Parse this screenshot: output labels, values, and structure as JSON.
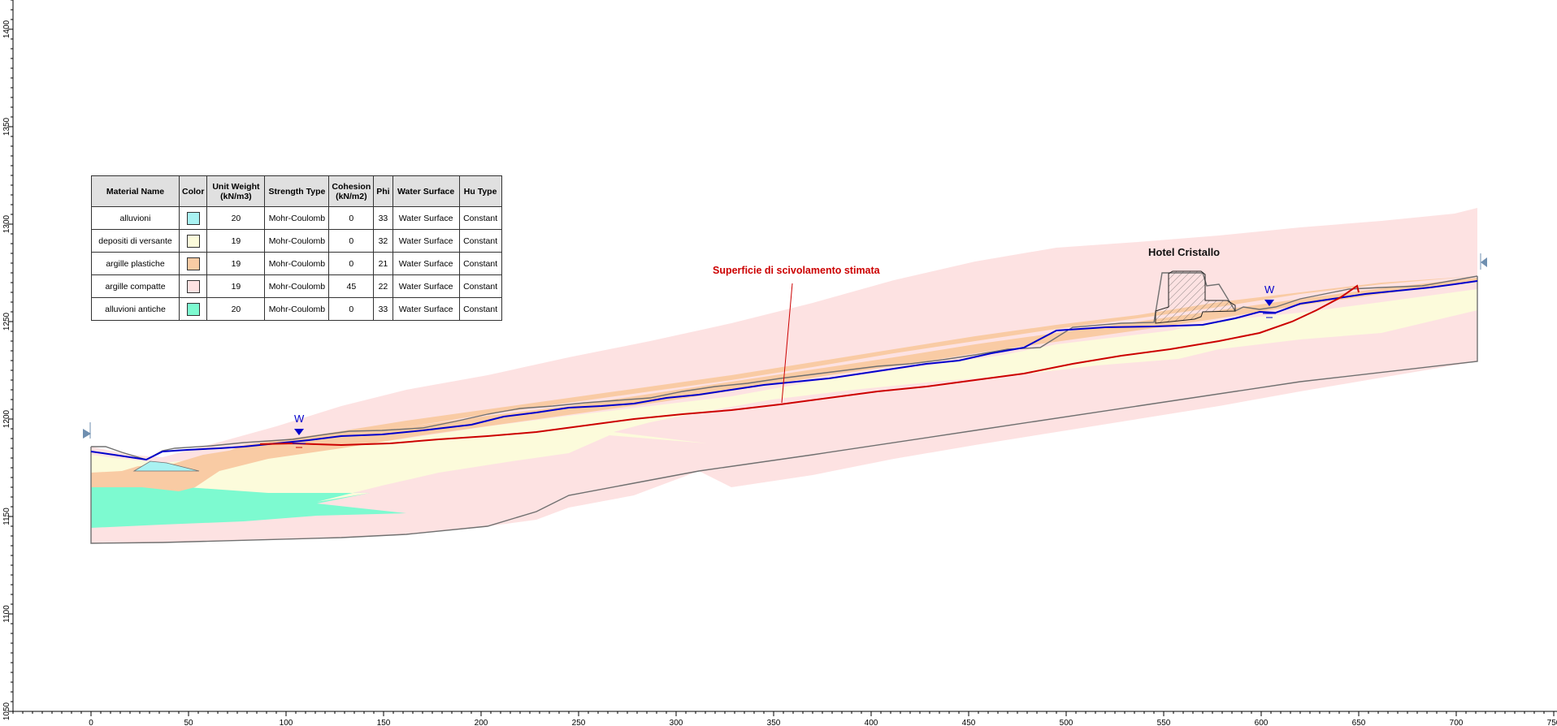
{
  "x_axis": {
    "ticks": [
      "0",
      "50",
      "100",
      "150",
      "200",
      "250",
      "300",
      "350",
      "400",
      "450",
      "500",
      "550",
      "600",
      "650",
      "700",
      "750"
    ]
  },
  "y_axis": {
    "ticks": [
      "1050",
      "1100",
      "1150",
      "1200",
      "1250",
      "1300",
      "1350",
      "1400"
    ]
  },
  "legend": {
    "headers": [
      "Material Name",
      "Color",
      "Unit Weight (kN/m3)",
      "Strength Type",
      "Cohesion (kN/m2)",
      "Phi",
      "Water Surface",
      "Hu Type"
    ],
    "rows": [
      {
        "name": "alluvioni",
        "color": "#a9f2f2",
        "unit_weight": "20",
        "strength": "Mohr-Coulomb",
        "cohesion": "0",
        "phi": "33",
        "water": "Water Surface",
        "hu": "Constant"
      },
      {
        "name": "depositi di versante",
        "color": "#fcfbdb",
        "unit_weight": "19",
        "strength": "Mohr-Coulomb",
        "cohesion": "0",
        "phi": "32",
        "water": "Water Surface",
        "hu": "Constant"
      },
      {
        "name": "argille plastiche",
        "color": "#f9cba4",
        "unit_weight": "19",
        "strength": "Mohr-Coulomb",
        "cohesion": "0",
        "phi": "21",
        "water": "Water Surface",
        "hu": "Constant"
      },
      {
        "name": "argille compatte",
        "color": "#fde2e2",
        "unit_weight": "19",
        "strength": "Mohr-Coulomb",
        "cohesion": "45",
        "phi": "22",
        "water": "Water Surface",
        "hu": "Constant"
      },
      {
        "name": "alluvioni antiche",
        "color": "#7dfad0",
        "unit_weight": "20",
        "strength": "Mohr-Coulomb",
        "cohesion": "0",
        "phi": "33",
        "water": "Water Surface",
        "hu": "Constant"
      }
    ]
  },
  "annotations": {
    "slip_surface": "Superficie di scivolamento stimata",
    "hotel": "Hotel Cristallo",
    "water_marker": "W"
  },
  "colors": {
    "water_table": "#0000cc",
    "slip_surface": "#cc0000",
    "ground_outline": "#707070",
    "boundary_marker": "#6f8fb0"
  }
}
